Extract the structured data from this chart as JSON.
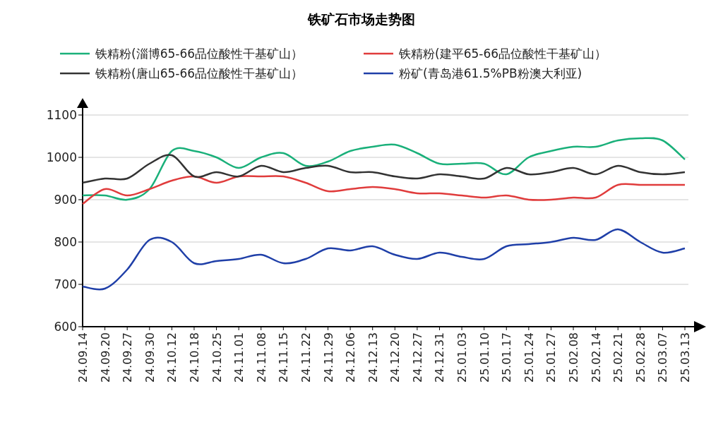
{
  "chart_data": {
    "type": "line",
    "title": "铁矿石市场走势图",
    "categories": [
      "24.09.14",
      "24.09.20",
      "24.09.27",
      "24.09.30",
      "24.10.12",
      "24.10.18",
      "24.10.25",
      "24.11.01",
      "24.11.08",
      "24.11.15",
      "24.11.22",
      "24.11.29",
      "24.12.06",
      "24.12.13",
      "24.12.20",
      "24.12.27",
      "24.12.31",
      "25.01.03",
      "25.01.10",
      "25.01.17",
      "25.01.24",
      "25.01.27",
      "25.02.08",
      "25.02.14",
      "25.02.21",
      "25.02.28",
      "25.03.07",
      "25.03.13"
    ],
    "series": [
      {
        "name": "铁精粉(淄博65-66品位酸性干基矿山）",
        "color": "#1ab07a",
        "values": [
          910,
          910,
          900,
          925,
          1015,
          1015,
          1000,
          975,
          1000,
          1010,
          980,
          990,
          1015,
          1025,
          1030,
          1010,
          985,
          985,
          985,
          960,
          1000,
          1015,
          1025,
          1025,
          1040,
          1045,
          1040,
          995
        ]
      },
      {
        "name": "铁精粉(建平65-66品位酸性干基矿山）",
        "color": "#e03c3c",
        "values": [
          890,
          925,
          910,
          925,
          945,
          955,
          940,
          955,
          955,
          955,
          940,
          920,
          925,
          930,
          925,
          915,
          915,
          910,
          905,
          910,
          900,
          900,
          905,
          905,
          935,
          935,
          935,
          935
        ]
      },
      {
        "name": "铁精粉(唐山65-66品位酸性干基矿山）",
        "color": "#333333",
        "values": [
          940,
          950,
          950,
          985,
          1005,
          955,
          965,
          955,
          980,
          965,
          975,
          980,
          965,
          965,
          955,
          950,
          960,
          955,
          950,
          975,
          960,
          965,
          975,
          960,
          980,
          965,
          960,
          965
        ]
      },
      {
        "name": "粉矿(青岛港61.5%PB粉澳大利亚)",
        "color": "#1f3fa8",
        "values": [
          695,
          690,
          735,
          805,
          800,
          750,
          755,
          760,
          770,
          750,
          760,
          785,
          780,
          790,
          770,
          760,
          775,
          765,
          760,
          790,
          795,
          800,
          810,
          805,
          830,
          800,
          775,
          785
        ]
      }
    ],
    "ylim": [
      600,
      1100
    ],
    "yticks": [
      600,
      700,
      800,
      900,
      1000,
      1100
    ],
    "grid": "y",
    "legend": "top",
    "marker": "none",
    "line_style": "solid"
  }
}
